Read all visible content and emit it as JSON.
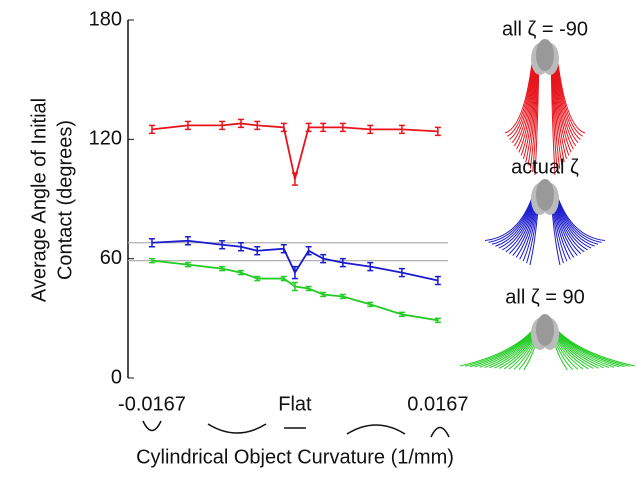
{
  "chart_data": {
    "type": "line",
    "ylabel": [
      "Average Angle of Initial",
      "Contact (degrees)"
    ],
    "xlabel": "Cylindrical Object Curvature (1/mm)",
    "x": [
      -0.0167,
      -0.0125,
      -0.0085,
      -0.0063,
      -0.0044,
      -0.0013,
      0,
      0.0016,
      0.0033,
      0.0056,
      0.0088,
      0.0125,
      0.0167
    ],
    "series": [
      {
        "name": "all ζ = -90",
        "color": "#e8141b",
        "values": [
          125,
          127,
          127,
          128,
          127,
          126,
          100,
          126,
          126,
          126,
          125,
          125,
          124
        ],
        "errors": [
          2,
          2,
          2,
          2,
          2,
          2,
          3,
          2,
          2,
          2,
          2,
          2,
          2
        ]
      },
      {
        "name": "actual ζ",
        "color": "#1a1ad0",
        "values": [
          68,
          69,
          67,
          66,
          64,
          65,
          53,
          64,
          60,
          58,
          56,
          53,
          49
        ],
        "errors": [
          2,
          2,
          2,
          2,
          2,
          2,
          3,
          2,
          2,
          2,
          2,
          2,
          2
        ]
      },
      {
        "name": "all ζ = 90",
        "color": "#22cc22",
        "values": [
          59,
          57,
          55,
          53,
          50,
          50,
          46,
          45,
          42,
          41,
          37,
          32,
          29
        ],
        "errors": [
          1,
          1,
          1,
          1,
          1,
          1,
          2,
          1,
          1,
          1,
          1,
          1,
          1
        ]
      }
    ],
    "reference_lines": [
      68,
      59
    ],
    "reference_color": "#b0b0b0",
    "xlim": [
      -0.0195,
      0.0187
    ],
    "xticks": [
      -0.0167,
      {
        "value": 0,
        "label": "Flat"
      },
      0.0167
    ],
    "ylim": [
      0,
      180
    ],
    "yticks": [
      0,
      60,
      120,
      180
    ]
  }
}
